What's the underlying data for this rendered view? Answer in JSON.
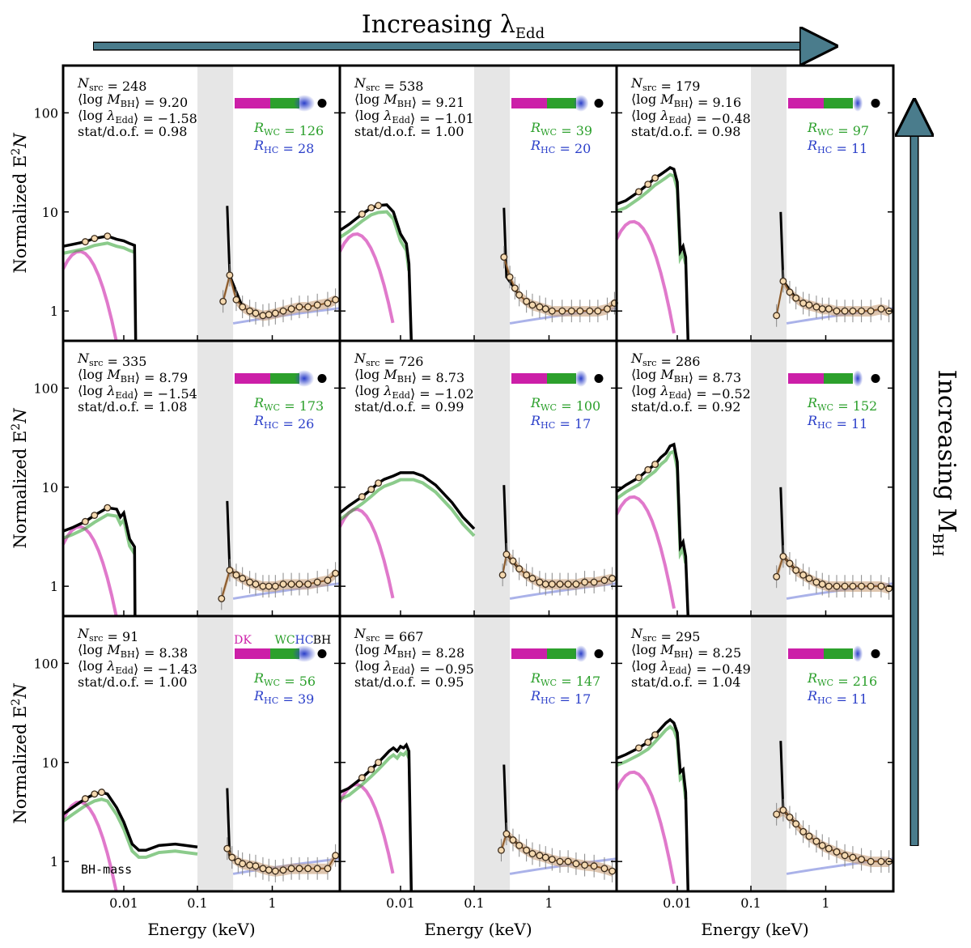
{
  "chart_data": {
    "type": "line",
    "title_top": "Increasing λ",
    "title_top_sub": "Edd",
    "title_right": "Increasing M",
    "title_right_sub": "BH",
    "xlabel": "Energy (keV)",
    "ylabel_main": "Normalized E",
    "ylabel_sup": "2",
    "ylabel_tail": "N",
    "x_scale": "log",
    "y_scale": "log",
    "xlim_left": [
      0.0015,
      0.1
    ],
    "xlim_right": [
      0.1,
      8
    ],
    "ylim": [
      0.5,
      300
    ],
    "x_tick_labels": [
      "0.01",
      "0.1",
      "1"
    ],
    "y_tick_labels": [
      "1",
      "10",
      "100"
    ],
    "grey_band_keV": [
      0.1,
      0.3
    ],
    "colors": {
      "disk": "#cc1fa8",
      "warm_corona": "#2ca02c",
      "hot_corona": "#2b3fc9",
      "stack": "#c9a07a",
      "model": "#000000",
      "data": "#888888",
      "arrow": "#4a7c8c",
      "band": "#e6e6e6"
    },
    "legend_labels": {
      "dk": "DK",
      "wc": "WC",
      "hc": "HC",
      "bh": "BH"
    },
    "annotation_bh_mass": "BH-mass",
    "panels": [
      {
        "row": 0,
        "col": 0,
        "nsrc": "N_src = 248",
        "mbh": "⟨log M_BH⟩ = 9.20",
        "ledd": "⟨log λ_Edd⟩ = −1.58",
        "stat": "stat/d.o.f. = 0.98",
        "rwc": "R_WC = 126",
        "rhc": "R_HC = 28",
        "sed_left": [
          [
            0.0015,
            4.5
          ],
          [
            0.002,
            4.7
          ],
          [
            0.003,
            5.0
          ],
          [
            0.004,
            5.4
          ],
          [
            0.006,
            5.7
          ],
          [
            0.008,
            5.3
          ],
          [
            0.01,
            5.1
          ],
          [
            0.012,
            4.8
          ],
          [
            0.014,
            4.6
          ],
          [
            0.0145,
            0.5
          ]
        ],
        "data_right": [
          [
            0.22,
            1.25
          ],
          [
            0.27,
            2.3
          ],
          [
            0.33,
            1.3
          ],
          [
            0.4,
            1.1
          ],
          [
            0.5,
            1.0
          ],
          [
            0.6,
            0.95
          ],
          [
            0.75,
            0.9
          ],
          [
            0.9,
            0.92
          ],
          [
            1.1,
            0.95
          ],
          [
            1.4,
            1.0
          ],
          [
            1.8,
            1.05
          ],
          [
            2.3,
            1.1
          ],
          [
            3,
            1.1
          ],
          [
            4,
            1.15
          ],
          [
            5.5,
            1.2
          ],
          [
            7,
            1.3
          ]
        ]
      },
      {
        "row": 0,
        "col": 1,
        "nsrc": "N_src = 538",
        "mbh": "⟨log M_BH⟩ = 9.21",
        "ledd": "⟨log λ_Edd⟩ = −1.01",
        "stat": "stat/d.o.f. = 1.00",
        "rwc": "R_WC = 39",
        "rhc": "R_HC = 20",
        "sed_left": [
          [
            0.0015,
            6.5
          ],
          [
            0.002,
            7.5
          ],
          [
            0.003,
            9.5
          ],
          [
            0.004,
            11.0
          ],
          [
            0.005,
            11.6
          ],
          [
            0.0065,
            11.8
          ],
          [
            0.008,
            10.0
          ],
          [
            0.01,
            6.0
          ],
          [
            0.012,
            4.8
          ],
          [
            0.013,
            3.0
          ],
          [
            0.014,
            0.5
          ]
        ],
        "data_right": [
          [
            0.25,
            3.5
          ],
          [
            0.3,
            2.2
          ],
          [
            0.35,
            1.7
          ],
          [
            0.4,
            1.45
          ],
          [
            0.5,
            1.25
          ],
          [
            0.6,
            1.15
          ],
          [
            0.75,
            1.1
          ],
          [
            0.9,
            1.05
          ],
          [
            1.1,
            1.0
          ],
          [
            1.5,
            1.0
          ],
          [
            2,
            1.0
          ],
          [
            2.6,
            1.0
          ],
          [
            3.5,
            1.0
          ],
          [
            4.5,
            1.0
          ],
          [
            6,
            1.05
          ],
          [
            7.5,
            1.2
          ]
        ]
      },
      {
        "row": 0,
        "col": 2,
        "nsrc": "N_src = 179",
        "mbh": "⟨log M_BH⟩ = 9.16",
        "ledd": "⟨log λ_Edd⟩ = −0.48",
        "stat": "stat/d.o.f. = 0.98",
        "rwc": "R_WC = 97",
        "rhc": "R_HC = 11",
        "sed_left": [
          [
            0.0015,
            12
          ],
          [
            0.002,
            13
          ],
          [
            0.003,
            16
          ],
          [
            0.004,
            19
          ],
          [
            0.005,
            22
          ],
          [
            0.006,
            24
          ],
          [
            0.007,
            26
          ],
          [
            0.008,
            28
          ],
          [
            0.009,
            27
          ],
          [
            0.01,
            20
          ],
          [
            0.011,
            4.0
          ],
          [
            0.012,
            4.5
          ],
          [
            0.013,
            3.5
          ],
          [
            0.014,
            0.5
          ]
        ],
        "data_right": [
          [
            0.22,
            0.9
          ],
          [
            0.27,
            2.0
          ],
          [
            0.33,
            1.55
          ],
          [
            0.4,
            1.35
          ],
          [
            0.5,
            1.2
          ],
          [
            0.6,
            1.15
          ],
          [
            0.75,
            1.1
          ],
          [
            0.9,
            1.05
          ],
          [
            1.1,
            1.05
          ],
          [
            1.4,
            1.0
          ],
          [
            1.8,
            1.0
          ],
          [
            2.3,
            1.0
          ],
          [
            3,
            1.0
          ],
          [
            4,
            1.0
          ],
          [
            5.5,
            1.05
          ],
          [
            7,
            1.0
          ]
        ]
      },
      {
        "row": 1,
        "col": 0,
        "nsrc": "N_src = 335",
        "mbh": "⟨log M_BH⟩ = 8.79",
        "ledd": "⟨log λ_Edd⟩ = −1.54",
        "stat": "stat/d.o.f. = 1.08",
        "rwc": "R_WC = 173",
        "rhc": "R_HC = 26",
        "sed_left": [
          [
            0.0015,
            3.6
          ],
          [
            0.002,
            3.9
          ],
          [
            0.003,
            4.5
          ],
          [
            0.004,
            5.2
          ],
          [
            0.006,
            6.2
          ],
          [
            0.008,
            6.0
          ],
          [
            0.009,
            5.0
          ],
          [
            0.01,
            5.5
          ],
          [
            0.012,
            3.0
          ],
          [
            0.014,
            2.5
          ],
          [
            0.0142,
            0.5
          ]
        ],
        "data_right": [
          [
            0.21,
            0.75
          ],
          [
            0.27,
            1.45
          ],
          [
            0.33,
            1.3
          ],
          [
            0.4,
            1.2
          ],
          [
            0.5,
            1.1
          ],
          [
            0.6,
            1.05
          ],
          [
            0.75,
            1.0
          ],
          [
            0.9,
            1.0
          ],
          [
            1.1,
            1.0
          ],
          [
            1.4,
            1.05
          ],
          [
            1.8,
            1.05
          ],
          [
            2.3,
            1.05
          ],
          [
            3,
            1.05
          ],
          [
            4,
            1.1
          ],
          [
            5.5,
            1.15
          ],
          [
            7,
            1.35
          ]
        ]
      },
      {
        "row": 1,
        "col": 1,
        "nsrc": "N_src = 726",
        "mbh": "⟨log M_BH⟩ = 8.73",
        "ledd": "⟨log λ_Edd⟩ = −1.02",
        "stat": "stat/d.o.f. = 0.99",
        "rwc": "R_WC = 100",
        "rhc": "R_HC = 17",
        "sed_left": [
          [
            0.0015,
            5.5
          ],
          [
            0.002,
            6.5
          ],
          [
            0.003,
            8.0
          ],
          [
            0.004,
            9.5
          ],
          [
            0.005,
            11.0
          ],
          [
            0.006,
            12.0
          ],
          [
            0.008,
            13.0
          ],
          [
            0.01,
            14.0
          ],
          [
            0.015,
            14.0
          ],
          [
            0.02,
            13.0
          ],
          [
            0.03,
            10.5
          ],
          [
            0.05,
            7.0
          ],
          [
            0.07,
            5.0
          ],
          [
            0.1,
            3.8
          ]
        ],
        "data_right": [
          [
            0.24,
            1.3
          ],
          [
            0.27,
            2.1
          ],
          [
            0.33,
            1.8
          ],
          [
            0.4,
            1.5
          ],
          [
            0.5,
            1.3
          ],
          [
            0.6,
            1.2
          ],
          [
            0.75,
            1.1
          ],
          [
            0.9,
            1.05
          ],
          [
            1.1,
            1.05
          ],
          [
            1.4,
            1.05
          ],
          [
            1.8,
            1.05
          ],
          [
            2.3,
            1.05
          ],
          [
            3,
            1.1
          ],
          [
            4,
            1.1
          ],
          [
            5.5,
            1.15
          ],
          [
            7,
            1.2
          ]
        ]
      },
      {
        "row": 1,
        "col": 2,
        "nsrc": "N_src = 286",
        "mbh": "⟨log M_BH⟩ = 8.73",
        "ledd": "⟨log λ_Edd⟩ = −0.52",
        "stat": "stat/d.o.f. = 0.92",
        "rwc": "R_WC = 152",
        "rhc": "R_HC = 11",
        "sed_left": [
          [
            0.0015,
            9.0
          ],
          [
            0.002,
            10.5
          ],
          [
            0.003,
            12.5
          ],
          [
            0.004,
            15.0
          ],
          [
            0.005,
            17.0
          ],
          [
            0.006,
            20.0
          ],
          [
            0.007,
            22.0
          ],
          [
            0.008,
            26.0
          ],
          [
            0.009,
            27.0
          ],
          [
            0.01,
            18.0
          ],
          [
            0.011,
            2.5
          ],
          [
            0.012,
            2.8
          ],
          [
            0.013,
            2.0
          ],
          [
            0.014,
            0.5
          ]
        ],
        "data_right": [
          [
            0.22,
            1.25
          ],
          [
            0.27,
            2.0
          ],
          [
            0.33,
            1.7
          ],
          [
            0.4,
            1.45
          ],
          [
            0.5,
            1.3
          ],
          [
            0.6,
            1.2
          ],
          [
            0.75,
            1.1
          ],
          [
            0.9,
            1.05
          ],
          [
            1.1,
            1.0
          ],
          [
            1.4,
            1.0
          ],
          [
            1.8,
            1.0
          ],
          [
            2.3,
            1.0
          ],
          [
            3,
            1.0
          ],
          [
            4,
            1.0
          ],
          [
            5.5,
            1.0
          ],
          [
            7,
            0.95
          ]
        ]
      },
      {
        "row": 2,
        "col": 0,
        "nsrc": "N_src = 91",
        "mbh": "⟨log M_BH⟩ = 8.38",
        "ledd": "⟨log λ_Edd⟩ = −1.43",
        "stat": "stat/d.o.f. = 1.00",
        "rwc": "R_WC = 56",
        "rhc": "R_HC = 39",
        "sed_left": [
          [
            0.0015,
            3.0
          ],
          [
            0.002,
            3.5
          ],
          [
            0.003,
            4.3
          ],
          [
            0.004,
            4.8
          ],
          [
            0.005,
            5.0
          ],
          [
            0.006,
            4.8
          ],
          [
            0.008,
            3.5
          ],
          [
            0.01,
            2.5
          ],
          [
            0.013,
            1.5
          ],
          [
            0.016,
            1.3
          ],
          [
            0.02,
            1.3
          ],
          [
            0.03,
            1.45
          ],
          [
            0.05,
            1.5
          ],
          [
            0.07,
            1.45
          ],
          [
            0.1,
            1.4
          ]
        ],
        "data_right": [
          [
            0.25,
            1.35
          ],
          [
            0.29,
            1.1
          ],
          [
            0.35,
            1.0
          ],
          [
            0.4,
            0.95
          ],
          [
            0.5,
            0.92
          ],
          [
            0.6,
            0.9
          ],
          [
            0.75,
            0.85
          ],
          [
            0.9,
            0.82
          ],
          [
            1.1,
            0.8
          ],
          [
            1.4,
            0.82
          ],
          [
            1.8,
            0.85
          ],
          [
            2.3,
            0.85
          ],
          [
            3,
            0.85
          ],
          [
            4,
            0.85
          ],
          [
            5.5,
            0.85
          ],
          [
            7,
            1.15
          ]
        ]
      },
      {
        "row": 2,
        "col": 1,
        "nsrc": "N_src = 667",
        "mbh": "⟨log M_BH⟩ = 8.28",
        "ledd": "⟨log λ_Edd⟩ = −0.95",
        "stat": "stat/d.o.f. = 0.95",
        "rwc": "R_WC = 147",
        "rhc": "R_HC = 17",
        "sed_left": [
          [
            0.0015,
            5.0
          ],
          [
            0.002,
            5.5
          ],
          [
            0.003,
            7.0
          ],
          [
            0.004,
            8.5
          ],
          [
            0.005,
            10.0
          ],
          [
            0.006,
            11.5
          ],
          [
            0.007,
            13.0
          ],
          [
            0.008,
            14.0
          ],
          [
            0.009,
            13.0
          ],
          [
            0.01,
            14.5
          ],
          [
            0.011,
            14.0
          ],
          [
            0.012,
            15.0
          ],
          [
            0.013,
            13.0
          ],
          [
            0.014,
            0.5
          ]
        ],
        "data_right": [
          [
            0.23,
            1.3
          ],
          [
            0.27,
            1.9
          ],
          [
            0.33,
            1.65
          ],
          [
            0.4,
            1.45
          ],
          [
            0.5,
            1.3
          ],
          [
            0.6,
            1.2
          ],
          [
            0.75,
            1.15
          ],
          [
            0.9,
            1.1
          ],
          [
            1.1,
            1.05
          ],
          [
            1.4,
            1.0
          ],
          [
            1.8,
            1.0
          ],
          [
            2.3,
            0.95
          ],
          [
            3,
            0.92
          ],
          [
            4,
            0.9
          ],
          [
            5.5,
            0.85
          ],
          [
            7,
            0.8
          ]
        ]
      },
      {
        "row": 2,
        "col": 2,
        "nsrc": "N_src = 295",
        "mbh": "⟨log M_BH⟩ = 8.25",
        "ledd": "⟨log λ_Edd⟩ = −0.49",
        "stat": "stat/d.o.f. = 1.04",
        "rwc": "R_WC = 216",
        "rhc": "R_HC = 11",
        "sed_left": [
          [
            0.0015,
            11.0
          ],
          [
            0.002,
            12.0
          ],
          [
            0.003,
            14.0
          ],
          [
            0.004,
            16.0
          ],
          [
            0.005,
            19.0
          ],
          [
            0.006,
            22.0
          ],
          [
            0.007,
            25.0
          ],
          [
            0.008,
            27.0
          ],
          [
            0.009,
            25.0
          ],
          [
            0.01,
            20.0
          ],
          [
            0.011,
            8.0
          ],
          [
            0.012,
            8.5
          ],
          [
            0.013,
            5.0
          ],
          [
            0.014,
            0.5
          ]
        ],
        "data_right": [
          [
            0.22,
            3.0
          ],
          [
            0.27,
            3.3
          ],
          [
            0.33,
            2.8
          ],
          [
            0.4,
            2.4
          ],
          [
            0.5,
            2.0
          ],
          [
            0.6,
            1.8
          ],
          [
            0.75,
            1.6
          ],
          [
            0.9,
            1.45
          ],
          [
            1.1,
            1.35
          ],
          [
            1.4,
            1.25
          ],
          [
            1.8,
            1.15
          ],
          [
            2.3,
            1.1
          ],
          [
            3,
            1.05
          ],
          [
            4,
            1.0
          ],
          [
            5.5,
            1.0
          ],
          [
            7,
            1.0
          ]
        ]
      }
    ]
  }
}
